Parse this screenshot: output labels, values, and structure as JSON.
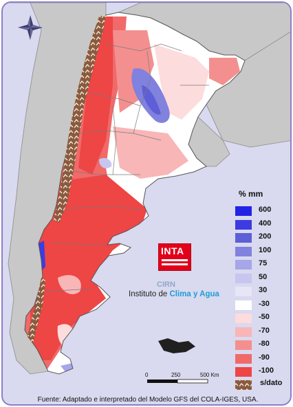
{
  "legend": {
    "title": "% mm",
    "items": [
      {
        "label": "600",
        "color": "#2323e6"
      },
      {
        "label": "400",
        "color": "#3c3ce0"
      },
      {
        "label": "200",
        "color": "#5e5ed6"
      },
      {
        "label": "100",
        "color": "#8181de"
      },
      {
        "label": "75",
        "color": "#a6a6e8"
      },
      {
        "label": "50",
        "color": "#c6c6f0"
      },
      {
        "label": "30",
        "color": "#e6e6f8"
      },
      {
        "label": "-30",
        "color": "#ffffff"
      },
      {
        "label": "-50",
        "color": "#fcdcdc"
      },
      {
        "label": "-70",
        "color": "#f8b6b6"
      },
      {
        "label": "-80",
        "color": "#f48f8f"
      },
      {
        "label": "-90",
        "color": "#f06a6a"
      },
      {
        "label": "-100",
        "color": "#ee4545"
      }
    ],
    "no_data": {
      "label": "s/dato",
      "color": "#8b5a3c"
    }
  },
  "logo": {
    "text": "INTA",
    "subtitle": "CIRN"
  },
  "institute": {
    "prefix": "Instituto de ",
    "accent": "Clima y Agua"
  },
  "scale": {
    "labels": [
      "0",
      "250",
      "500 Km"
    ]
  },
  "footer": "Fuente: Adaptado e interpretado del Modelo GFS del COLA-IGES, USA.",
  "icons": {
    "compass": "compass-rose-icon"
  }
}
